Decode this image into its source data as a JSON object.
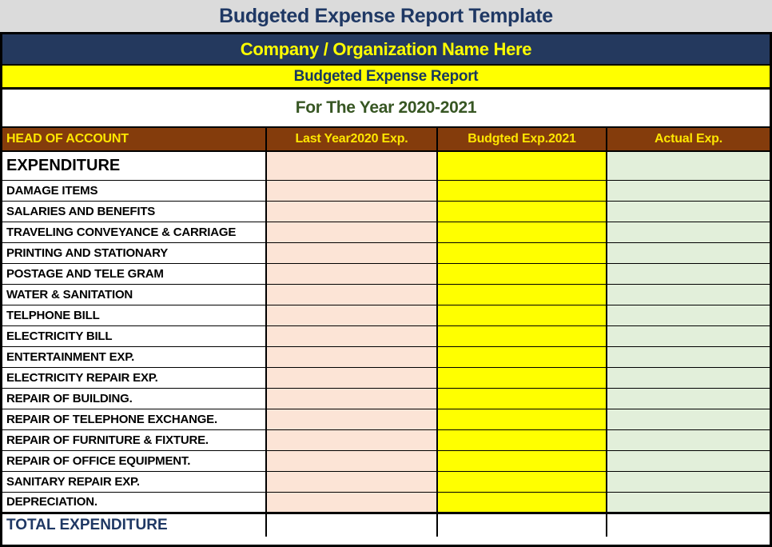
{
  "header": {
    "template_title": "Budgeted Expense Report Template",
    "company_name": "Company / Organization Name Here",
    "report_title": "Budgeted Expense Report",
    "period": "For The Year 2020-2021"
  },
  "table": {
    "columns": [
      "HEAD OF ACCOUNT",
      "Last Year2020 Exp.",
      "Budgted Exp.2021",
      "Actual Exp."
    ],
    "section": {
      "label": "EXPENDITURE",
      "last_year": "",
      "budgeted": "",
      "actual": ""
    },
    "rows": [
      {
        "label": "DAMAGE ITEMS",
        "last_year": "",
        "budgeted": "",
        "actual": ""
      },
      {
        "label": "SALARIES AND BENEFITS",
        "last_year": "",
        "budgeted": "",
        "actual": ""
      },
      {
        "label": "TRAVELING CONVEYANCE & CARRIAGE",
        "last_year": "",
        "budgeted": "",
        "actual": ""
      },
      {
        "label": "PRINTING AND STATIONARY",
        "last_year": "",
        "budgeted": "",
        "actual": ""
      },
      {
        "label": "POSTAGE AND TELE GRAM",
        "last_year": "",
        "budgeted": "",
        "actual": ""
      },
      {
        "label": "WATER & SANITATION",
        "last_year": "",
        "budgeted": "",
        "actual": ""
      },
      {
        "label": "TELPHONE BILL",
        "last_year": "",
        "budgeted": "",
        "actual": ""
      },
      {
        "label": "ELECTRICITY BILL",
        "last_year": "",
        "budgeted": "",
        "actual": ""
      },
      {
        "label": "ENTERTAINMENT EXP.",
        "last_year": "",
        "budgeted": "",
        "actual": ""
      },
      {
        "label": "ELECTRICITY REPAIR EXP.",
        "last_year": "",
        "budgeted": "",
        "actual": ""
      },
      {
        "label": "REPAIR OF BUILDING.",
        "last_year": "",
        "budgeted": "",
        "actual": ""
      },
      {
        "label": "REPAIR OF TELEPHONE EXCHANGE.",
        "last_year": "",
        "budgeted": "",
        "actual": ""
      },
      {
        "label": "REPAIR OF FURNITURE & FIXTURE.",
        "last_year": "",
        "budgeted": "",
        "actual": ""
      },
      {
        "label": "REPAIR OF OFFICE EQUIPMENT.",
        "last_year": "",
        "budgeted": "",
        "actual": ""
      },
      {
        "label": "SANITARY REPAIR EXP.",
        "last_year": "",
        "budgeted": "",
        "actual": ""
      },
      {
        "label": "DEPRECIATION.",
        "last_year": "",
        "budgeted": "",
        "actual": ""
      }
    ],
    "total": {
      "label": "TOTAL EXPENDITURE",
      "last_year": "",
      "budgeted": "",
      "actual": ""
    }
  },
  "colors": {
    "title_bar_bg": "#DBDBDB",
    "title_text": "#1F3864",
    "company_bar_bg": "#24395E",
    "company_text": "#FFFF00",
    "report_bar_bg": "#FFFF00",
    "report_text": "#17375E",
    "period_text": "#375623",
    "header_row_bg": "#843C0C",
    "header_row_text": "#FFE600",
    "last_year_cell_bg": "#FCE4D6",
    "budgeted_cell_bg": "#FFFF00",
    "actual_cell_bg": "#E2EFDA",
    "total_text": "#1F3864",
    "grid_border": "#000000"
  }
}
